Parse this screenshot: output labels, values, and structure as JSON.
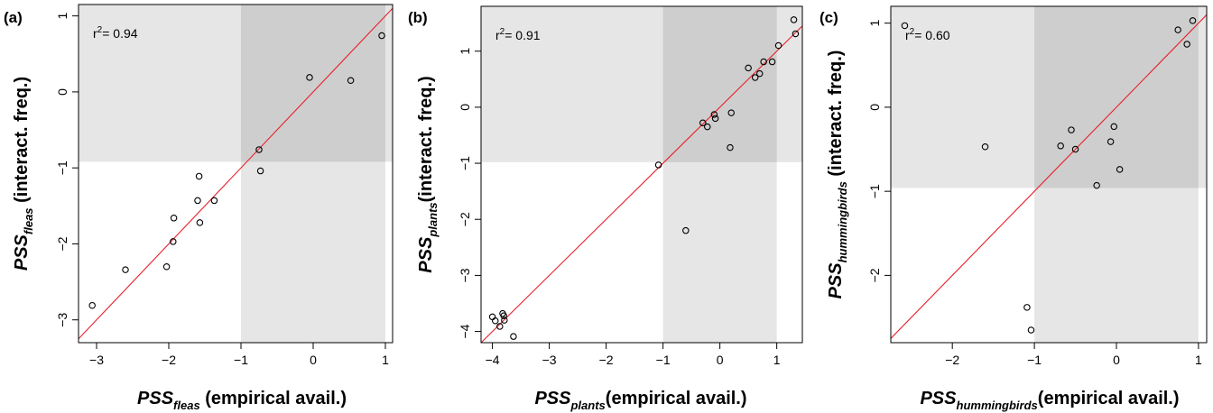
{
  "chart_data": [
    {
      "type": "scatter",
      "panel_label": "(a)",
      "xlabel": {
        "prefix": "PSS",
        "subscript": "fleas",
        "text": " (empirical avail.)"
      },
      "ylabel": {
        "prefix": "PSS",
        "subscript": "fleas",
        "text": " (interact. freq.)"
      },
      "annotation": {
        "base": "r",
        "sup": "2",
        "rest": "= 0.94"
      },
      "xlim": [
        -3.25,
        1.1
      ],
      "ylim": [
        -3.3,
        1.15
      ],
      "xticks": [
        -3,
        -2,
        -1,
        0,
        1
      ],
      "yticks": [
        -3,
        -2,
        -1,
        0,
        1
      ],
      "x_threshold": -1,
      "y_threshold": -0.92,
      "points": [
        [
          -3.06,
          -2.81
        ],
        [
          -2.6,
          -2.34
        ],
        [
          -2.03,
          -2.3
        ],
        [
          -1.94,
          -1.97
        ],
        [
          -1.93,
          -1.66
        ],
        [
          -1.6,
          -1.43
        ],
        [
          -1.58,
          -1.11
        ],
        [
          -1.57,
          -1.72
        ],
        [
          -1.37,
          -1.43
        ],
        [
          -0.75,
          -0.76
        ],
        [
          -0.73,
          -1.04
        ],
        [
          -0.05,
          0.19
        ],
        [
          0.52,
          0.15
        ],
        [
          0.95,
          0.74
        ]
      ],
      "fit_line": [
        [
          -3.25,
          -3.25
        ],
        [
          1.1,
          1.1
        ]
      ]
    },
    {
      "type": "scatter",
      "panel_label": "(b)",
      "xlabel": {
        "prefix": "PSS",
        "subscript": "plants",
        "text": "(empirical avail.)"
      },
      "ylabel": {
        "prefix": "PSS",
        "subscript": "plants",
        "text": "(interact. freq.)"
      },
      "annotation": {
        "base": "r",
        "sup": "2",
        "rest": "= 0.91"
      },
      "xlim": [
        -4.2,
        1.45
      ],
      "ylim": [
        -4.2,
        1.8
      ],
      "xticks": [
        -4,
        -3,
        -2,
        -1,
        0,
        1
      ],
      "yticks": [
        -4,
        -3,
        -2,
        -1,
        0,
        1
      ],
      "x_threshold": -1,
      "y_threshold": -0.98,
      "points": [
        [
          -4.0,
          -3.74
        ],
        [
          -3.95,
          -3.81
        ],
        [
          -3.87,
          -3.91
        ],
        [
          -3.82,
          -3.68
        ],
        [
          -3.8,
          -3.72
        ],
        [
          -3.79,
          -3.8
        ],
        [
          -3.63,
          -4.09
        ],
        [
          -1.08,
          -1.03
        ],
        [
          -0.6,
          -2.2
        ],
        [
          -0.3,
          -0.28
        ],
        [
          -0.22,
          -0.35
        ],
        [
          -0.1,
          -0.13
        ],
        [
          -0.08,
          -0.2
        ],
        [
          0.18,
          -0.72
        ],
        [
          0.2,
          -0.1
        ],
        [
          0.5,
          0.7
        ],
        [
          0.62,
          0.53
        ],
        [
          0.7,
          0.6
        ],
        [
          0.77,
          0.81
        ],
        [
          0.92,
          0.81
        ],
        [
          1.03,
          1.1
        ],
        [
          1.3,
          1.56
        ],
        [
          1.33,
          1.31
        ]
      ],
      "fit_line": [
        [
          -4.2,
          -4.2
        ],
        [
          1.8,
          1.8
        ]
      ]
    },
    {
      "type": "scatter",
      "panel_label": "(c)",
      "xlabel": {
        "prefix": "PSS",
        "subscript": "hummingbirds",
        "text": "(empirical avail.)"
      },
      "ylabel": {
        "prefix": "PSS",
        "subscript": "hummingbirds",
        "text": " (interact. freq.)"
      },
      "annotation": {
        "base": "r",
        "sup": "2",
        "rest": "= 0.60"
      },
      "xlim": [
        -2.75,
        1.1
      ],
      "ylim": [
        -2.8,
        1.2
      ],
      "xticks": [
        -2,
        -1,
        0,
        1
      ],
      "yticks": [
        -2,
        -1,
        0,
        1
      ],
      "x_threshold": -1,
      "y_threshold": -0.96,
      "points": [
        [
          -2.58,
          0.97
        ],
        [
          -1.6,
          -0.47
        ],
        [
          -1.09,
          -2.38
        ],
        [
          -1.04,
          -2.65
        ],
        [
          -0.68,
          -0.46
        ],
        [
          -0.55,
          -0.27
        ],
        [
          -0.5,
          -0.5
        ],
        [
          -0.24,
          -0.93
        ],
        [
          -0.07,
          -0.41
        ],
        [
          -0.03,
          -0.23
        ],
        [
          0.04,
          -0.74
        ],
        [
          0.75,
          0.92
        ],
        [
          0.86,
          0.75
        ],
        [
          0.93,
          1.03
        ]
      ],
      "fit_line": [
        [
          -2.8,
          -2.8
        ],
        [
          1.2,
          1.2
        ]
      ]
    }
  ]
}
